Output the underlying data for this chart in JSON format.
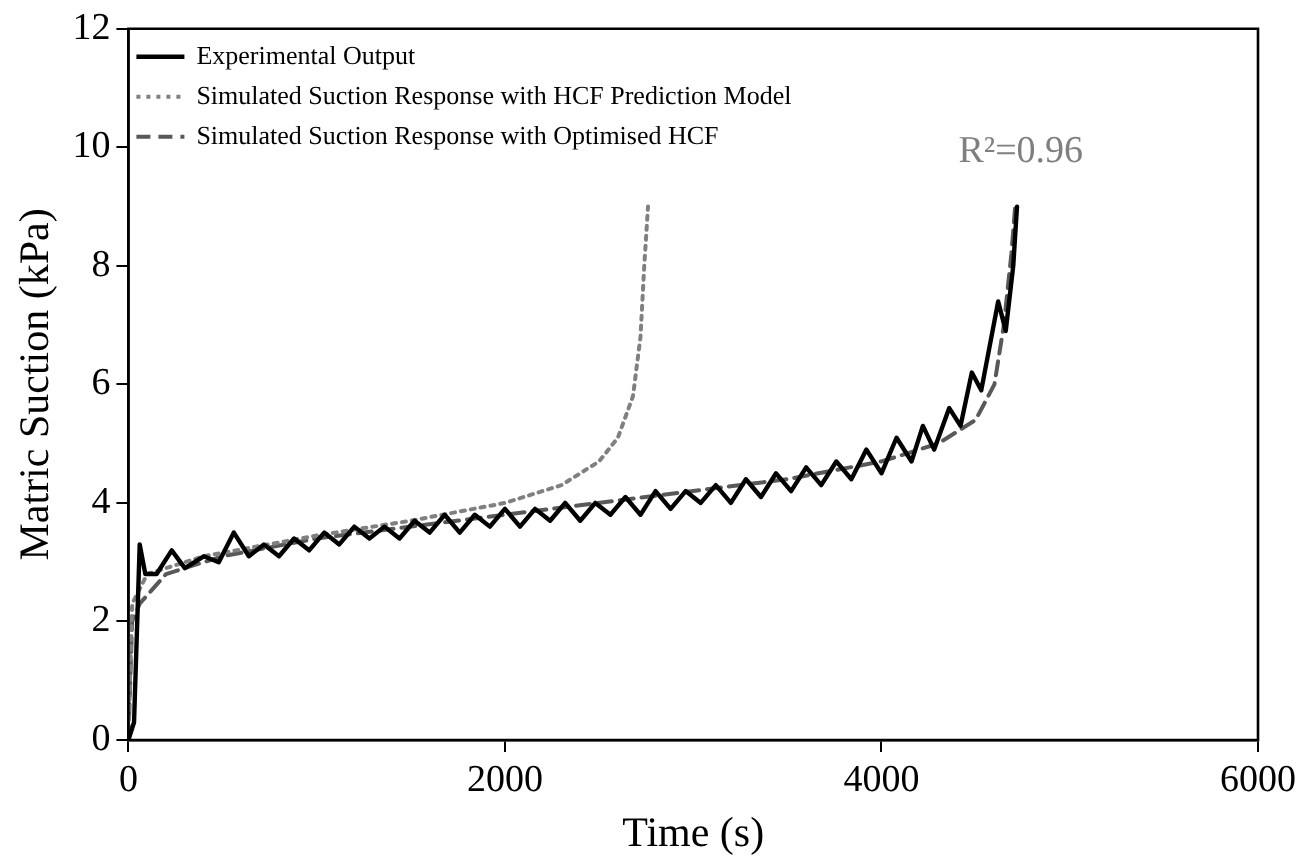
{
  "chart_data": {
    "type": "line",
    "xlabel": "Time (s)",
    "ylabel": "Matric Suction (kPa)",
    "xlim": [
      0,
      6000
    ],
    "xticks": [
      0,
      2000,
      4000,
      6000
    ],
    "ylim": [
      0,
      12
    ],
    "yticks": [
      0,
      2,
      4,
      6,
      8,
      10,
      12
    ],
    "grid": false,
    "legend": "top left",
    "marker": "none",
    "annotations": [
      "R²=0.96"
    ],
    "series": [
      {
        "name": "Experimental Output",
        "color": "#000000",
        "line_style": "solid",
        "x": [
          0,
          30,
          60,
          90,
          150,
          230,
          300,
          400,
          480,
          560,
          640,
          720,
          800,
          880,
          960,
          1040,
          1120,
          1200,
          1280,
          1360,
          1440,
          1520,
          1600,
          1680,
          1760,
          1840,
          1920,
          2000,
          2080,
          2160,
          2240,
          2320,
          2400,
          2480,
          2560,
          2640,
          2720,
          2800,
          2880,
          2960,
          3040,
          3120,
          3200,
          3280,
          3360,
          3440,
          3520,
          3600,
          3680,
          3760,
          3840,
          3920,
          4000,
          4080,
          4160,
          4220,
          4280,
          4360,
          4420,
          4480,
          4530,
          4620,
          4660,
          4700,
          4720
        ],
        "values": [
          0,
          0.3,
          3.3,
          2.8,
          2.8,
          3.2,
          2.9,
          3.1,
          3.0,
          3.5,
          3.1,
          3.3,
          3.1,
          3.4,
          3.2,
          3.5,
          3.3,
          3.6,
          3.4,
          3.6,
          3.4,
          3.7,
          3.5,
          3.8,
          3.5,
          3.8,
          3.6,
          3.9,
          3.6,
          3.9,
          3.7,
          4.0,
          3.7,
          4.0,
          3.8,
          4.1,
          3.8,
          4.2,
          3.9,
          4.2,
          4.0,
          4.3,
          4.0,
          4.4,
          4.1,
          4.5,
          4.2,
          4.6,
          4.3,
          4.7,
          4.4,
          4.9,
          4.5,
          5.1,
          4.7,
          5.3,
          4.9,
          5.6,
          5.3,
          6.2,
          5.9,
          7.4,
          6.9,
          8.0,
          9.0
        ]
      },
      {
        "name": "Simulated Suction Response with HCF Prediction Model",
        "color": "#808080",
        "line_style": "dotted",
        "x": [
          0,
          20,
          100,
          400,
          1000,
          1500,
          2000,
          2300,
          2500,
          2600,
          2680,
          2720,
          2740,
          2760
        ],
        "values": [
          0,
          2.3,
          2.8,
          3.1,
          3.45,
          3.7,
          4.0,
          4.3,
          4.7,
          5.1,
          5.8,
          6.8,
          8.0,
          9.0
        ]
      },
      {
        "name": "Simulated Suction Response with Optimised HCF",
        "color": "#595959",
        "line_style": "dashed",
        "x": [
          0,
          20,
          60,
          200,
          500,
          1000,
          2000,
          3000,
          3500,
          4000,
          4300,
          4500,
          4600,
          4650,
          4690,
          4710
        ],
        "values": [
          0,
          2.0,
          2.3,
          2.8,
          3.1,
          3.4,
          3.8,
          4.2,
          4.4,
          4.7,
          5.0,
          5.4,
          6.0,
          7.0,
          8.2,
          9.0
        ]
      }
    ]
  }
}
